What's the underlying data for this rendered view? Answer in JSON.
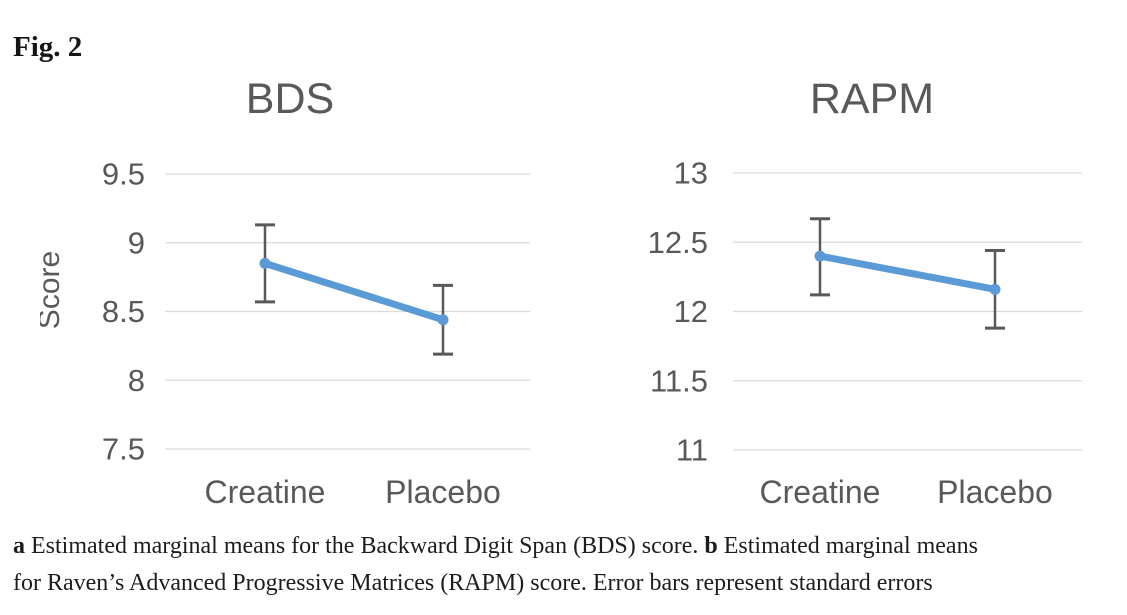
{
  "figure_label": "Fig. 2",
  "colors": {
    "line": "#5B9BD5",
    "error_bar": "#595959",
    "gridline": "#D9D9D9",
    "chart_text": "#595959",
    "caption_text": "#1d1d1d"
  },
  "caption": {
    "lines": [
      [
        {
          "text": "a",
          "bold": true
        },
        {
          "text": " Estimated marginal means for the Backward Digit Span (BDS) score. ",
          "bold": false
        },
        {
          "text": "b",
          "bold": true
        },
        {
          "text": " Estimated marginal means",
          "bold": false
        }
      ],
      [
        {
          "text": "for Raven’s Advanced Progressive Matrices (RAPM) score. Error bars represent standard errors",
          "bold": false
        }
      ]
    ]
  },
  "chart_data": [
    {
      "type": "line",
      "panel": "a",
      "title": "BDS",
      "xlabel": "",
      "ylabel": "Score",
      "categories": [
        "Creatine",
        "Placebo"
      ],
      "values": [
        8.85,
        8.44
      ],
      "error_bars": {
        "upper": [
          9.13,
          8.69
        ],
        "lower": [
          8.57,
          8.19
        ]
      },
      "ylim": [
        7.5,
        9.5
      ],
      "yticks": [
        9.5,
        9,
        8.5,
        8,
        7.5
      ],
      "grid": true,
      "legend_position": "none"
    },
    {
      "type": "line",
      "panel": "b",
      "title": "RAPM",
      "xlabel": "",
      "ylabel": "",
      "categories": [
        "Creatine",
        "Placebo"
      ],
      "values": [
        12.4,
        12.16
      ],
      "error_bars": {
        "upper": [
          12.67,
          12.44
        ],
        "lower": [
          12.12,
          11.88
        ]
      },
      "ylim": [
        11,
        13
      ],
      "yticks": [
        13,
        12.5,
        12,
        11.5,
        11
      ],
      "grid": true,
      "legend_position": "none"
    }
  ]
}
